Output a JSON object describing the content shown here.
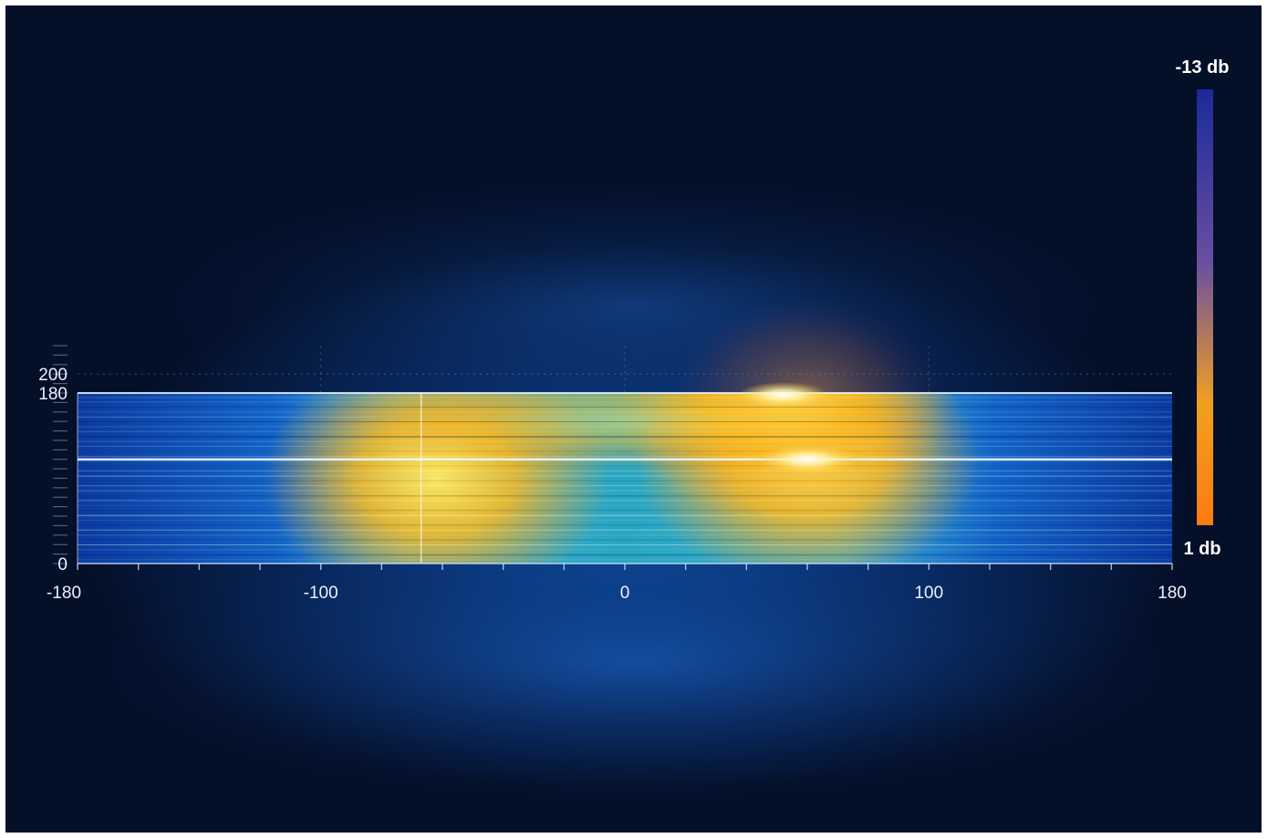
{
  "chart_data": {
    "type": "heatmap",
    "title": "",
    "xlabel": "",
    "ylabel": "",
    "x_ticks": [
      -180,
      -100,
      0,
      100,
      180
    ],
    "y_ticks": [
      0,
      180,
      200
    ],
    "xlim": [
      -180,
      180
    ],
    "ylim": [
      0,
      220
    ],
    "band_y_range": [
      0,
      180
    ],
    "colorbar": {
      "top_label": "-13 db",
      "bottom_label": "1 db",
      "range": [
        -13,
        1
      ],
      "colors": [
        "#1a2a9a",
        "#6a4fa0",
        "#f0a020",
        "#ff7a10"
      ]
    },
    "hotspots": [
      {
        "x": -62,
        "y": 90,
        "intensity": 1.0
      },
      {
        "x": 60,
        "y": 110,
        "intensity": 1.0
      },
      {
        "x": 52,
        "y": 180,
        "intensity": 0.9
      },
      {
        "x": 60,
        "y": 195,
        "intensity": 0.6
      }
    ],
    "reference_lines": {
      "horizontal_y": 110,
      "vertical_x": -67
    },
    "grid": true,
    "colors": {
      "background": "#06173a",
      "band_cold": "#0c3c9c",
      "band_warm": "#ffc21a",
      "axis": "#cfe2ff"
    }
  }
}
